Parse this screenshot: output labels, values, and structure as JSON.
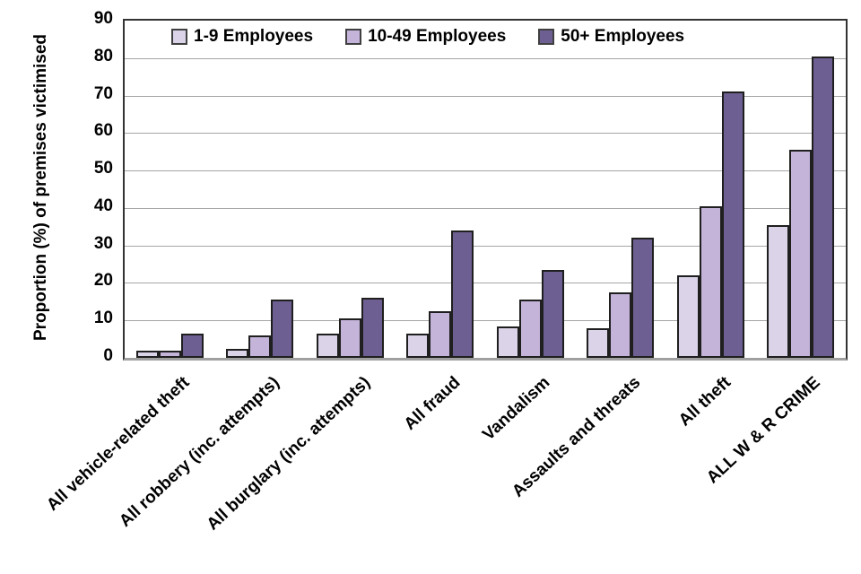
{
  "chart_data": {
    "type": "bar",
    "title": "",
    "xlabel": "",
    "ylabel": "Proportion (%) of premises victimised",
    "ylim": [
      0,
      90
    ],
    "ytick_interval": 10,
    "yticks": [
      0,
      10,
      20,
      30,
      40,
      50,
      60,
      70,
      80,
      90
    ],
    "grid": true,
    "legend_position": "top-inside",
    "categories": [
      "All vehicle-related theft",
      "All robbery (inc. attempts)",
      "All burglary (inc. attempts)",
      "All fraud",
      "Vandalism",
      "Assaults and threats",
      "All theft",
      "ALL W & R CRIME"
    ],
    "series": [
      {
        "name": "1-9 Employees",
        "color": "#DBD3E8",
        "values": [
          2,
          2.5,
          6.5,
          6.5,
          8.5,
          8,
          22,
          35.5
        ]
      },
      {
        "name": "10-49 Employees",
        "color": "#C5B4DA",
        "values": [
          2,
          6,
          10.5,
          12.5,
          15.5,
          17.5,
          40.5,
          55.5
        ]
      },
      {
        "name": "50+ Employees",
        "color": "#6E5F92",
        "values": [
          6.5,
          15.5,
          16,
          34,
          23.5,
          32,
          71,
          80.5
        ]
      }
    ],
    "colors": {
      "gridline": "#A6A6A6",
      "plot_border": "#333333",
      "bottom_axis": "#A0A0A0",
      "bar_outline": "#1F1F1F",
      "text": "#000000",
      "background": "#FFFFFF"
    }
  }
}
